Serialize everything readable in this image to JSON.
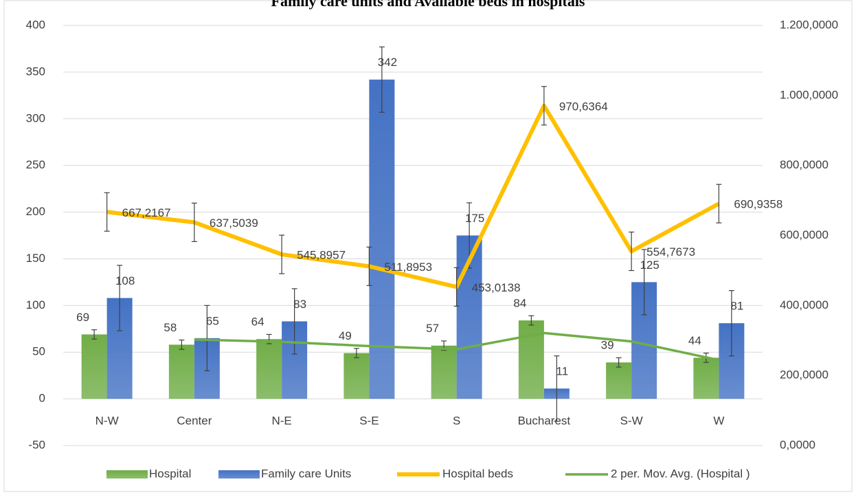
{
  "chart_data": {
    "type": "bar",
    "title": "Family care units and Available beds in hospitals",
    "categories": [
      "N-W",
      "Center",
      "N-E",
      "S-E",
      "S",
      "Bucharest",
      "S-W",
      "W"
    ],
    "series": [
      {
        "name": "Hospital",
        "type": "bar",
        "color": "#70ad47",
        "values": [
          69,
          58,
          64,
          49,
          57,
          84,
          39,
          44
        ],
        "errors": [
          5,
          5,
          5,
          5,
          5,
          5,
          5,
          5
        ]
      },
      {
        "name": "Family care Units",
        "type": "bar",
        "color": "#4472c4",
        "values": [
          108,
          65,
          83,
          342,
          175,
          11,
          125,
          81
        ],
        "errors": [
          35,
          35,
          35,
          35,
          35,
          35,
          35,
          35
        ]
      },
      {
        "name": "Hospital beds",
        "type": "line",
        "axis": "y2",
        "color": "#ffc000",
        "values": [
          667.2167,
          637.5039,
          545.8957,
          511.8953,
          453.0138,
          970.6364,
          554.7673,
          690.9358
        ],
        "value_labels": [
          "667,2167",
          "637,5039",
          "545,8957",
          "511,8953",
          "453,0138",
          "970,6364",
          "554,7673",
          "690,9358"
        ],
        "errors": [
          55,
          55,
          55,
          55,
          55,
          55,
          55,
          55
        ]
      },
      {
        "name": "2 per. Mov. Avg. (Hospital )",
        "type": "line",
        "color": "#70ad47",
        "values": [
          null,
          63.5,
          61,
          56.5,
          53,
          70.5,
          61.5,
          41.5
        ]
      }
    ],
    "ylim": [
      -50,
      400
    ],
    "yticks": [
      -50,
      0,
      50,
      100,
      150,
      200,
      250,
      300,
      350,
      400
    ],
    "y2lim": [
      0,
      1200
    ],
    "y2ticks": [
      {
        "value": 0,
        "label": "0,0000"
      },
      {
        "value": 200,
        "label": "200,0000"
      },
      {
        "value": 400,
        "label": "400,0000"
      },
      {
        "value": 600,
        "label": "600,0000"
      },
      {
        "value": 800,
        "label": "800,0000"
      },
      {
        "value": 1000,
        "label": "1.000,0000"
      },
      {
        "value": 1200,
        "label": "1.200,0000"
      }
    ],
    "grid": true,
    "legend": "bottom"
  }
}
